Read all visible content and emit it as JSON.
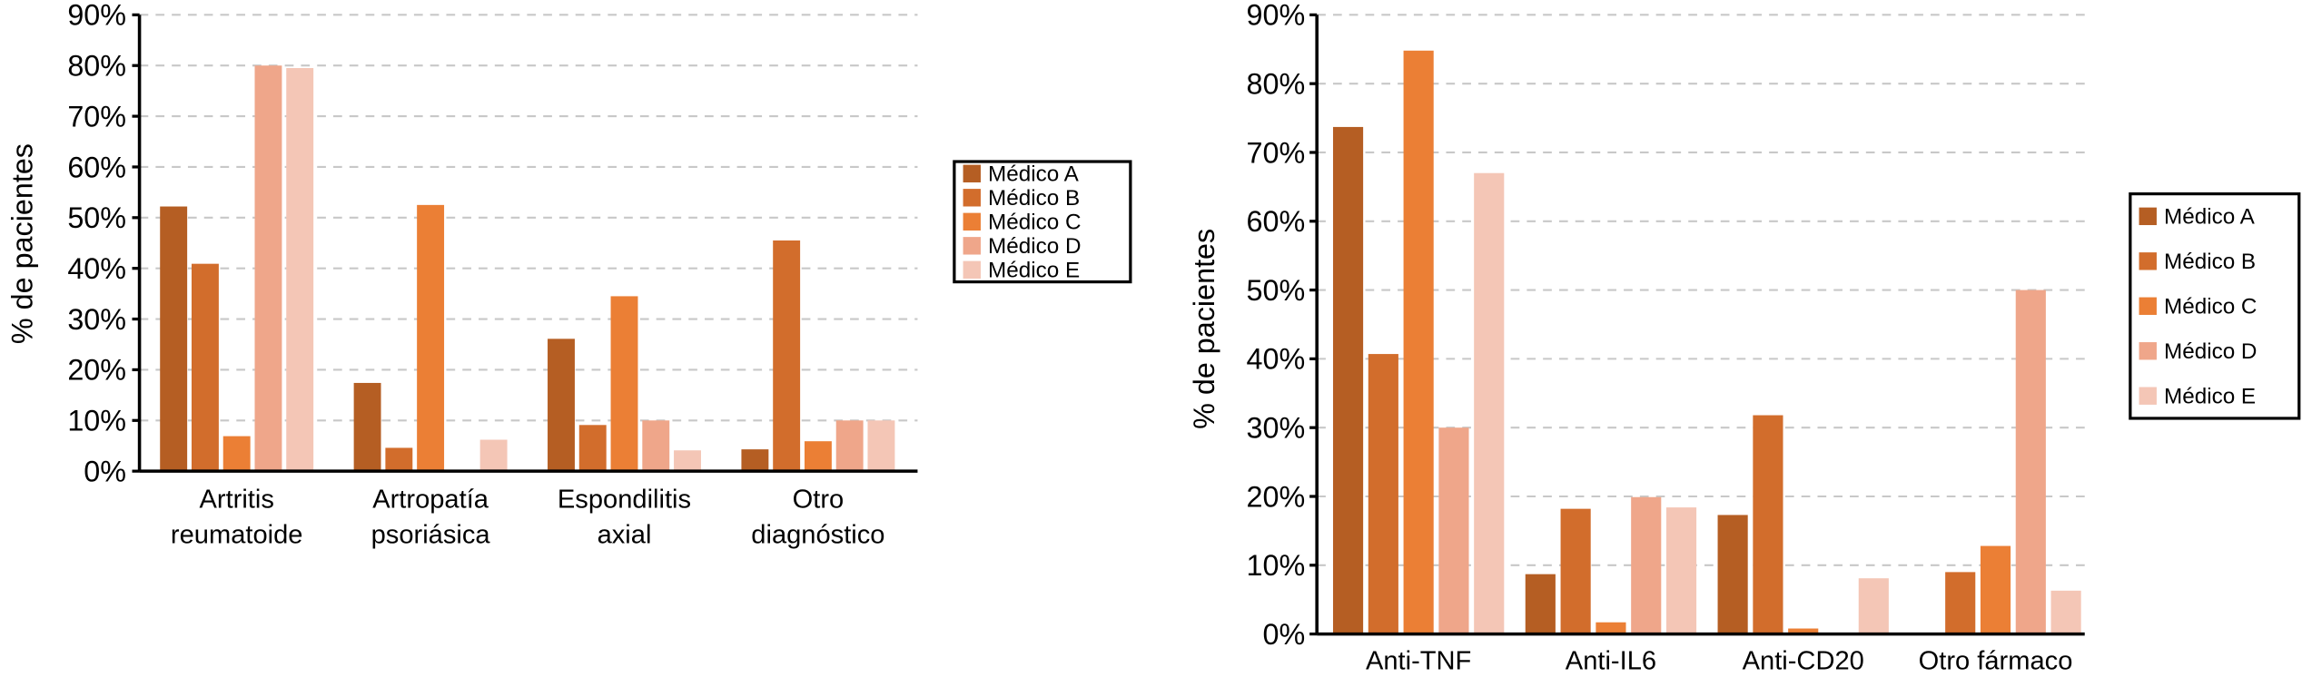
{
  "colors": {
    "Médico A": "#b55e23",
    "Médico B": "#d26d2c",
    "Médico C": "#eb7f35",
    "Médico D": "#efa68a",
    "Médico E": "#f4c6b6",
    "grid": "#c8c8c8"
  },
  "chart_data": [
    {
      "type": "bar",
      "ylabel": "% de pacientes",
      "ylim": [
        0,
        90
      ],
      "yticks": [
        "0%",
        "10%",
        "20%",
        "30%",
        "40%",
        "50%",
        "60%",
        "70%",
        "80%",
        "90%"
      ],
      "grid": "dashed horizontal",
      "legend_position": "right",
      "categories": [
        [
          "Artritis",
          "reumatoide"
        ],
        [
          "Artropatía",
          "psoriásica"
        ],
        [
          "Espondilitis",
          "axial"
        ],
        [
          "Otro",
          "diagnóstico"
        ]
      ],
      "series": [
        {
          "name": "Médico A",
          "values": [
            52.2,
            17.4,
            26.1,
            4.3
          ]
        },
        {
          "name": "Médico B",
          "values": [
            40.9,
            4.6,
            9.1,
            45.5
          ]
        },
        {
          "name": "Médico C",
          "values": [
            6.9,
            52.5,
            34.5,
            5.9
          ]
        },
        {
          "name": "Médico D",
          "values": [
            80.0,
            0,
            10.0,
            10.0
          ]
        },
        {
          "name": "Médico E",
          "values": [
            79.5,
            6.2,
            4.1,
            10.0
          ]
        }
      ]
    },
    {
      "type": "bar",
      "ylabel": "% de pacientes",
      "ylim": [
        0,
        90
      ],
      "yticks": [
        "0%",
        "10%",
        "20%",
        "30%",
        "40%",
        "50%",
        "60%",
        "70%",
        "80%",
        "90%"
      ],
      "grid": "dashed horizontal",
      "legend_position": "right",
      "categories": [
        [
          "Anti-TNF"
        ],
        [
          "Anti-IL6"
        ],
        [
          "Anti-CD20"
        ],
        [
          "Otro fármaco"
        ]
      ],
      "series": [
        {
          "name": "Médico A",
          "values": [
            73.7,
            8.7,
            17.3,
            0
          ]
        },
        {
          "name": "Médico B",
          "values": [
            40.7,
            18.2,
            31.8,
            9.0
          ]
        },
        {
          "name": "Médico C",
          "values": [
            84.8,
            1.7,
            0.8,
            12.8
          ]
        },
        {
          "name": "Médico D",
          "values": [
            30.0,
            19.9,
            0,
            50.0
          ]
        },
        {
          "name": "Médico E",
          "values": [
            67.0,
            18.4,
            8.1,
            6.3
          ]
        }
      ]
    }
  ]
}
